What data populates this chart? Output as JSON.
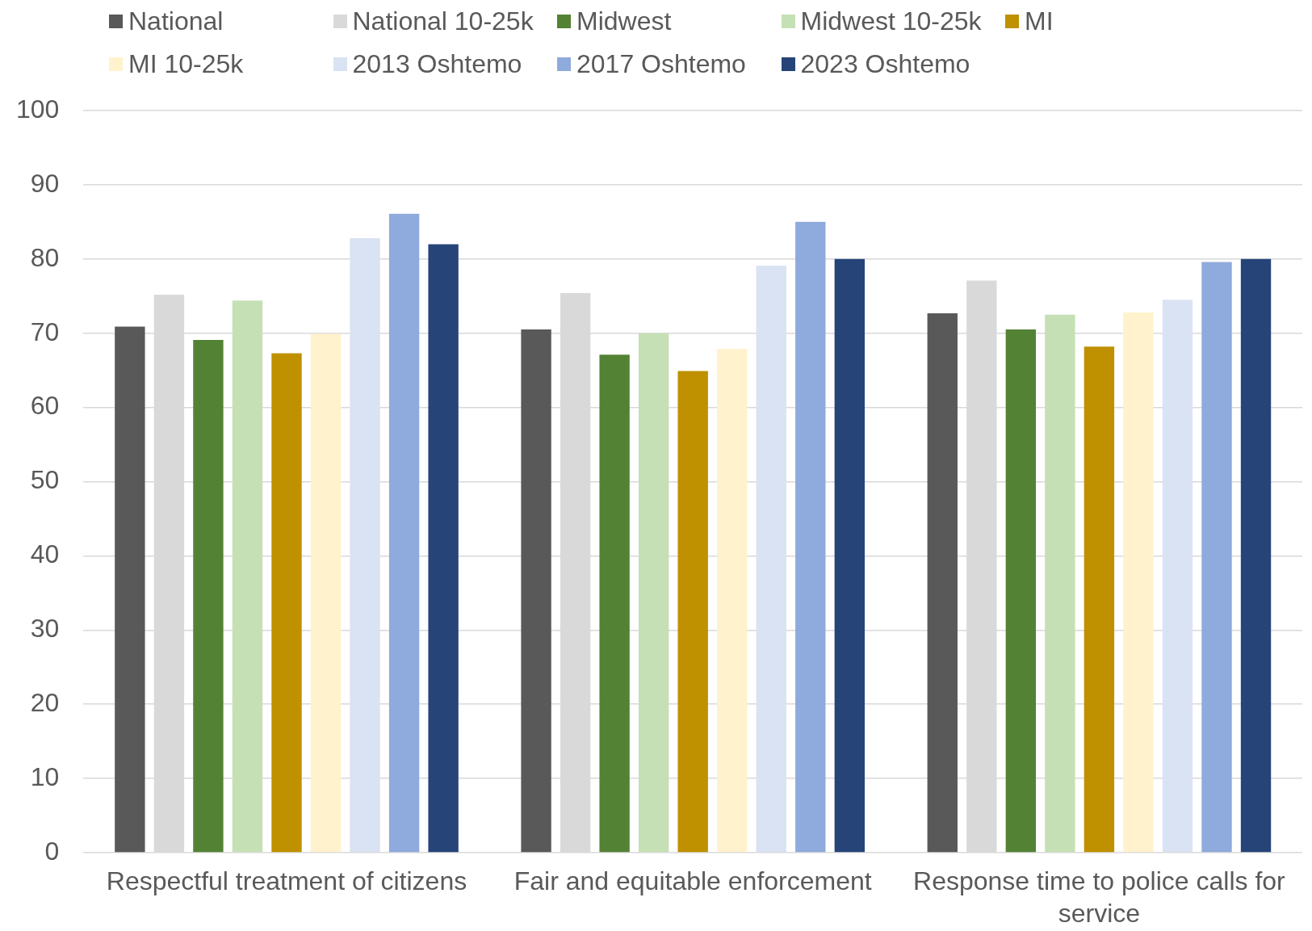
{
  "chart_data": {
    "type": "bar",
    "categories": [
      "Respectful treatment of citizens",
      "Fair and equitable enforcement",
      "Response time to police calls for service"
    ],
    "series": [
      {
        "name": "National",
        "color": "#595959",
        "values": [
          70.9,
          70.5,
          72.7
        ]
      },
      {
        "name": "National 10-25k",
        "color": "#d9d9d9",
        "values": [
          75.2,
          75.4,
          77.1
        ]
      },
      {
        "name": "Midwest",
        "color": "#548235",
        "values": [
          69.1,
          67.1,
          70.5
        ]
      },
      {
        "name": "Midwest 10-25k",
        "color": "#c5e0b4",
        "values": [
          74.4,
          70.0,
          72.5
        ]
      },
      {
        "name": "MI",
        "color": "#bf9000",
        "values": [
          67.3,
          64.9,
          68.2
        ]
      },
      {
        "name": "MI 10-25k",
        "color": "#fff2cc",
        "values": [
          69.9,
          67.9,
          72.8
        ]
      },
      {
        "name": "2013 Oshtemo",
        "color": "#dae3f3",
        "values": [
          82.8,
          79.1,
          74.5
        ]
      },
      {
        "name": "2017 Oshtemo",
        "color": "#8faadc",
        "values": [
          86.1,
          85.0,
          79.6
        ]
      },
      {
        "name": "2023 Oshtemo",
        "color": "#264478",
        "values": [
          82.0,
          80.0,
          80.0
        ]
      }
    ],
    "ylim": [
      0,
      100
    ],
    "yticks": [
      0,
      10,
      20,
      30,
      40,
      50,
      60,
      70,
      80,
      90,
      100
    ],
    "grid": "y",
    "legend": "top"
  }
}
